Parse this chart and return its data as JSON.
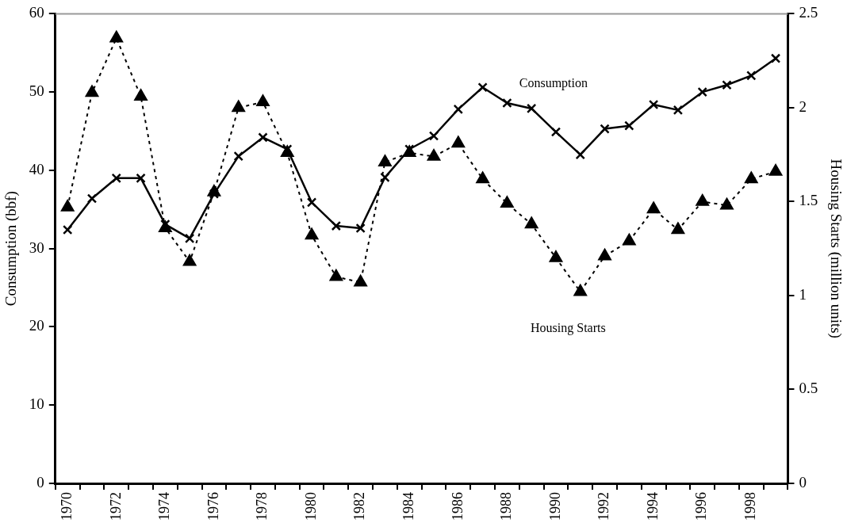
{
  "chart_data": {
    "type": "line",
    "ylabel": "Consumption (bbf)",
    "y2label": "Housing Starts (million units)",
    "categories": [
      "1970",
      null,
      "1972",
      null,
      "1974",
      null,
      "1976",
      null,
      "1978",
      null,
      "1980",
      null,
      "1982",
      null,
      "1984",
      null,
      "1986",
      null,
      "1988",
      null,
      "1990",
      null,
      "1992",
      null,
      "1994",
      null,
      "1996",
      null,
      "1998",
      null
    ],
    "ylim": [
      0,
      60
    ],
    "yticks": [
      0,
      10,
      20,
      30,
      40,
      50,
      60
    ],
    "y2lim": [
      0,
      2.5
    ],
    "y2ticks": [
      0,
      0.5,
      1,
      1.5,
      2,
      2.5
    ],
    "grid": false,
    "legend": false,
    "series": [
      {
        "name": "Consumption",
        "color": "#000000",
        "marker": "cross",
        "line_style": "solid",
        "values": [
          32.4,
          36.4,
          39.0,
          39.0,
          33.1,
          31.3,
          37.0,
          41.8,
          44.2,
          42.7,
          35.9,
          32.9,
          32.6,
          39.1,
          42.7,
          44.4,
          47.8,
          50.6,
          48.6,
          47.9,
          44.9,
          42.0,
          45.3,
          45.7,
          48.4,
          47.7,
          50.0,
          50.9,
          52.1,
          54.3
        ]
      },
      {
        "name": "Housing Starts",
        "color": "#000000",
        "marker": "triangle",
        "line_style": "dashed",
        "axis": "y2",
        "values": [
          1.47,
          2.08,
          2.37,
          2.06,
          1.36,
          1.18,
          1.55,
          2.0,
          2.03,
          1.76,
          1.32,
          1.1,
          1.07,
          1.71,
          1.76,
          1.74,
          1.81,
          1.62,
          1.49,
          1.38,
          1.2,
          1.02,
          1.21,
          1.29,
          1.46,
          1.35,
          1.5,
          1.48,
          1.62,
          1.66
        ]
      }
    ]
  }
}
